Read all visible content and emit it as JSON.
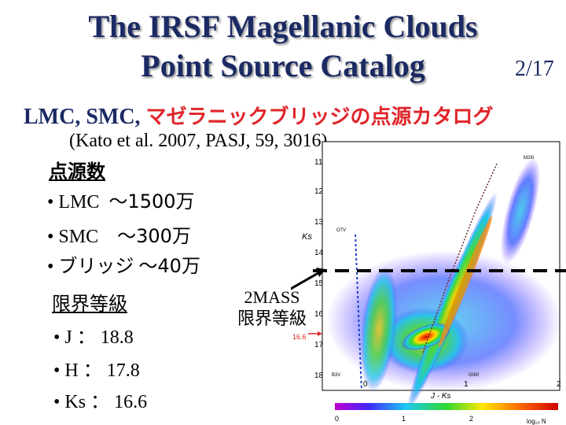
{
  "slide": {
    "title_line1": "The IRSF Magellanic Clouds",
    "title_line2": "Point Source Catalog",
    "page_number": "2/17",
    "subtitle_black": "LMC, SMC, ",
    "subtitle_red": "マゼラニックブリッジの点源カタログ",
    "reference": "(Kato et al. 2007, PASJ, 59, 3016)"
  },
  "source_counts": {
    "heading": "点源数",
    "items": [
      {
        "bullet": "•",
        "name": "LMC",
        "value": "～1500万"
      },
      {
        "bullet": "•",
        "name": "SMC",
        "value": "～300万"
      },
      {
        "bullet": "•",
        "name": "ブリッジ",
        "value": "～40万"
      }
    ]
  },
  "limiting_magnitudes": {
    "heading": "限界等級",
    "items": [
      {
        "bullet": "•",
        "band": "J",
        "sep": "：",
        "value": "18.8"
      },
      {
        "bullet": "•",
        "band": "H",
        "sep": "：",
        "value": "17.8"
      },
      {
        "bullet": "•",
        "band": "Ks",
        "sep": "：",
        "value": "16.6"
      }
    ]
  },
  "annotation": {
    "line1": "2MASS",
    "line2": "限界等級",
    "arrow_color": "#000000"
  },
  "colors": {
    "title": "#1b2a63",
    "subtitle_red": "#e0252a",
    "limit_line": "#000000",
    "marker_red": "#e0252a"
  },
  "cmd_plot": {
    "xlabel": "J - Ks",
    "ylabel": "Ks",
    "x_ticks": [
      "0",
      "1",
      "2"
    ],
    "y_ticks": [
      "11",
      "12",
      "13",
      "14",
      "15",
      "16",
      "17",
      "18"
    ],
    "marker_label": "16.6",
    "star_labels": [
      "M2III",
      "O7V",
      "B3V",
      "G0III"
    ],
    "colorbar_ticks": [
      "0",
      "1",
      "2"
    ],
    "colorbar_label": "log₁₀ N"
  }
}
